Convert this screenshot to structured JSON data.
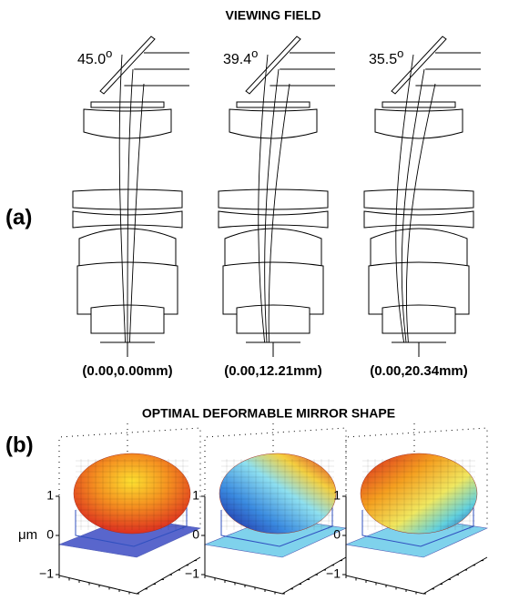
{
  "panel_a": {
    "title": "VIEWING FIELD",
    "label": "(a)",
    "columns": [
      {
        "angle": "45.0",
        "degree": "o",
        "field": "(0.00,0.00mm)"
      },
      {
        "angle": "39.4",
        "degree": "o",
        "field": "(0.00,12.21mm)"
      },
      {
        "angle": "35.5",
        "degree": "o",
        "field": "(0.00,20.34mm)"
      }
    ]
  },
  "panel_b": {
    "title": "OPTIMAL DEFORMABLE MIRROR SHAPE",
    "label": "(b)",
    "unit": "μm",
    "plots": [
      {
        "z_ticks": [
          "1",
          "0",
          "−1"
        ]
      },
      {
        "z_ticks": [
          "1",
          "0",
          "−1"
        ]
      },
      {
        "z_ticks": [
          "1",
          "0",
          "−1"
        ]
      }
    ]
  }
}
